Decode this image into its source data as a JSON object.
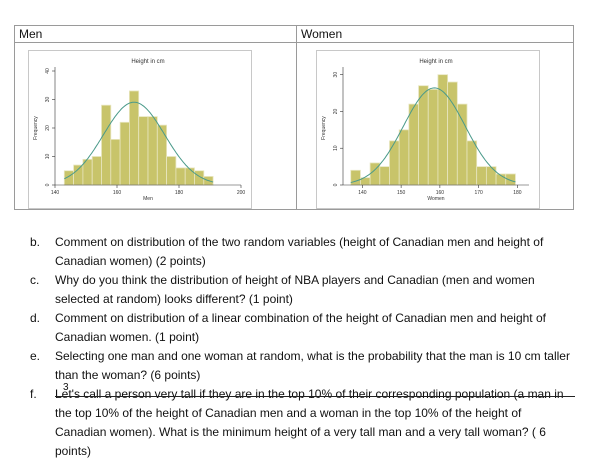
{
  "table": {
    "men_header": "Men",
    "women_header": "Women"
  },
  "chart_data": [
    {
      "type": "bar",
      "title": "Height in cm",
      "xlabel": "Men",
      "ylabel": "Frequency",
      "xlim": [
        140,
        200
      ],
      "ylim": [
        0,
        40
      ],
      "xticks": [
        "140",
        "160",
        "180",
        "200"
      ],
      "yticks": [
        "0",
        "10",
        "20",
        "30",
        "40"
      ],
      "bin_width": 3,
      "bins_start": [
        143,
        146,
        149,
        152,
        155,
        158,
        161,
        164,
        167,
        170,
        173,
        176,
        179,
        182,
        185,
        188
      ],
      "values": [
        5,
        7,
        9,
        10,
        28,
        16,
        22,
        33,
        24,
        24,
        21,
        10,
        6,
        6,
        5,
        3
      ],
      "overlay": "normal curve",
      "colors": {
        "bar": "#c8c46a",
        "bar_edge": "#e8e6c0",
        "curve": "#4a9a8a"
      }
    },
    {
      "type": "bar",
      "title": "Height in cm",
      "xlabel": "Women",
      "ylabel": "Frequency",
      "xlim": [
        135,
        183
      ],
      "ylim": [
        0,
        31
      ],
      "xticks": [
        "140",
        "150",
        "160",
        "170",
        "180"
      ],
      "yticks": [
        "0",
        "10",
        "20",
        "30"
      ],
      "bin_width": 2.5,
      "bins_start": [
        137,
        139.5,
        142,
        144.5,
        147,
        149.5,
        152,
        154.5,
        157,
        159.5,
        162,
        164.5,
        167,
        169.5,
        172,
        174.5,
        177
      ],
      "values": [
        4,
        2,
        6,
        5,
        12,
        15,
        22,
        27,
        26,
        30,
        28,
        22,
        12,
        5,
        5,
        3,
        3
      ],
      "overlay": "normal curve",
      "colors": {
        "bar": "#c8c46a",
        "bar_edge": "#e8e6c0",
        "curve": "#4a9a8a"
      }
    }
  ],
  "questions": [
    {
      "letter": "b.",
      "text": "Comment on distribution of the two random variables (height of Canadian men and height of Canadian women) (2 points)"
    },
    {
      "letter": "c.",
      "text": "Why do you think the distribution of height of NBA players and Canadian (men and women selected at random) looks different? (1 point)"
    },
    {
      "letter": "d.",
      "text": "Comment on distribution of a linear combination of the height of Canadian men and height of Canadian women. (1 point)"
    },
    {
      "letter": "e.",
      "text": "Selecting one man and one woman at random, what is the probability that the man is 10 cm taller than the woman? (6 points)"
    },
    {
      "letter": "f.",
      "text": "Let's call a person very tall if they are in the top 10% of their corresponding population (a man in the top 10% of the height of Canadian men and a woman in the top 10% of the height of Canadian women). What is the minimum height of a very tall man and a very tall woman? ( 6 points)",
      "marker": "3"
    }
  ]
}
